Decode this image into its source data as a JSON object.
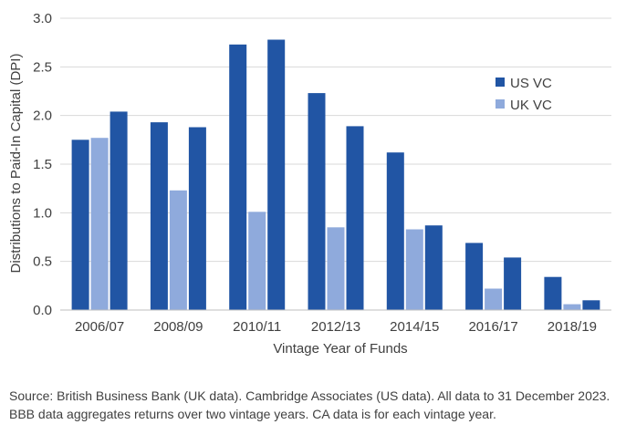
{
  "chart_data": {
    "type": "bar",
    "xlabel": "Vintage Year of Funds",
    "ylabel": "Distributions to Paid-In Capital (DPI)",
    "ylim": [
      0,
      3.0
    ],
    "yticks": [
      "0.0",
      "0.5",
      "1.0",
      "1.5",
      "2.0",
      "2.5",
      "3.0"
    ],
    "grid": true,
    "legend_position": "top-right",
    "categories": [
      "2006/07",
      "2008/09",
      "2010/11",
      "2012/13",
      "2014/15",
      "2016/17",
      "2018/19"
    ],
    "series": [
      {
        "name": "US VC",
        "color": "#2155a4",
        "values": [
          [
            1.75,
            2.04
          ],
          [
            1.93,
            1.88
          ],
          [
            2.73,
            2.78
          ],
          [
            2.23,
            1.89
          ],
          [
            1.62,
            0.87
          ],
          [
            0.69,
            0.54
          ],
          [
            0.34,
            0.1
          ]
        ]
      },
      {
        "name": "UK VC",
        "color": "#8faadc",
        "values": [
          1.77,
          1.23,
          1.01,
          0.85,
          0.83,
          0.22,
          0.06
        ]
      }
    ]
  },
  "source_note": "Source:  British Business Bank (UK data).  Cambridge Associates (US data).  All data to 31 December 2023.  BBB data aggregates returns over two vintage years.  CA data is for each vintage year."
}
